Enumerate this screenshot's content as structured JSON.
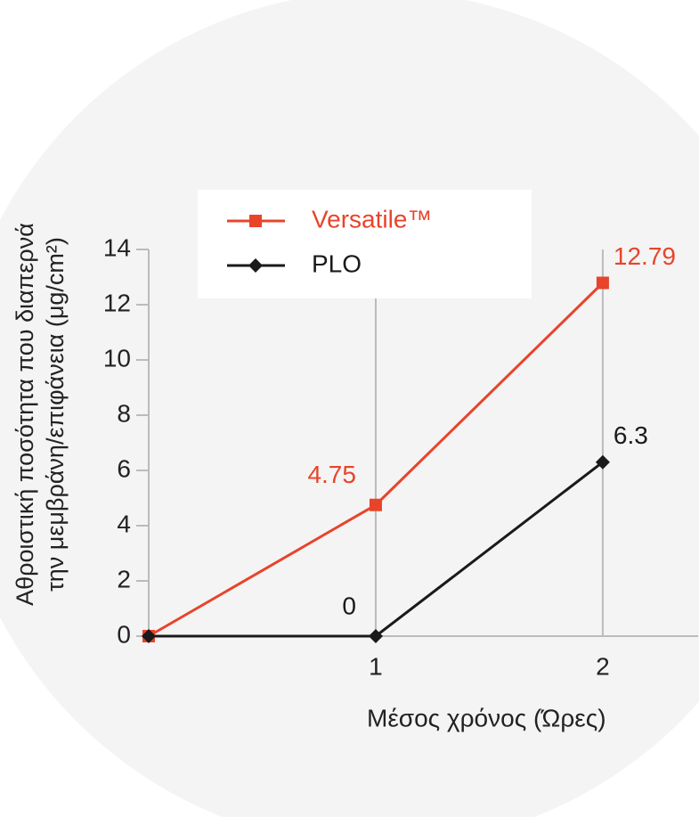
{
  "chart_data": {
    "type": "line",
    "x_label": "Μέσος χρόνος (Ώρες)",
    "y_label": [
      "Αθροιστική ποσότητα που διαπερνά",
      "την μεμβράνη/επιφάνεια (μg/cm²)"
    ],
    "x": [
      0,
      1,
      2
    ],
    "series": [
      {
        "name": "Versatile™",
        "color": "#e8442b",
        "marker": "square",
        "values": [
          0,
          4.75,
          12.79
        ]
      },
      {
        "name": "PLO",
        "color": "#1a1a1a",
        "marker": "diamond",
        "values": [
          0,
          0,
          6.3
        ]
      }
    ],
    "xlim": [
      0,
      2.42
    ],
    "xticks": [
      1,
      2
    ],
    "ylim": [
      0,
      14
    ],
    "yticks": [
      0,
      2,
      4,
      6,
      8,
      10,
      12,
      14
    ],
    "grid": true,
    "legend": "top-left"
  }
}
